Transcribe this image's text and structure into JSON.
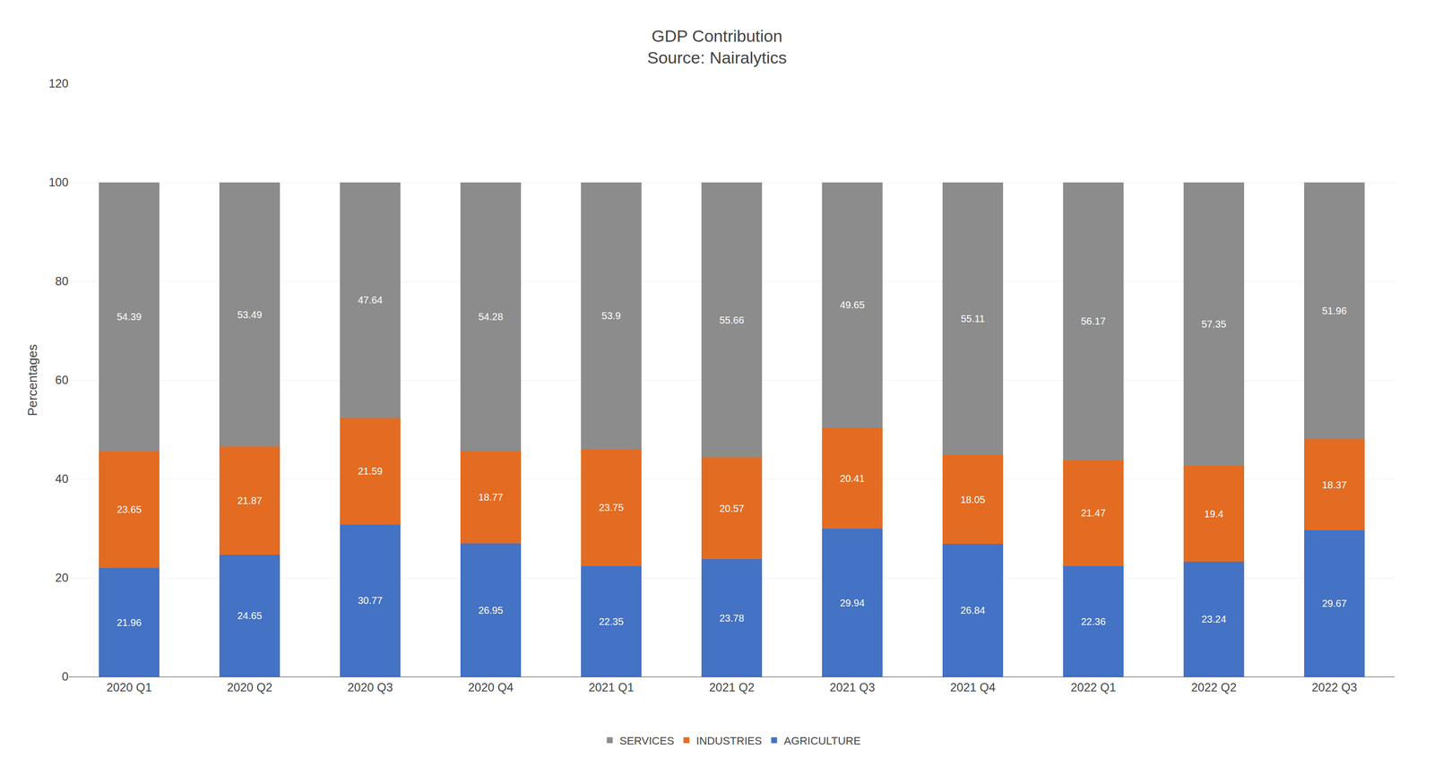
{
  "chart_data": {
    "type": "bar",
    "title": "GDP Contribution\nSource: Nairalytics",
    "ylabel": "Percentages",
    "categories": [
      "2020 Q1",
      "2020 Q2",
      "2020 Q3",
      "2020 Q4",
      "2021 Q1",
      "2021 Q2",
      "2021 Q3",
      "2021 Q4",
      "2022 Q1",
      "2022 Q2",
      "2022 Q3"
    ],
    "series": [
      {
        "name": "AGRICULTURE",
        "color": "#4472C4",
        "values": [
          21.96,
          24.65,
          30.77,
          26.95,
          22.35,
          23.78,
          29.94,
          26.84,
          22.36,
          23.24,
          29.67
        ]
      },
      {
        "name": "INDUSTRIES",
        "color": "#E36C22",
        "values": [
          23.65,
          21.87,
          21.59,
          18.77,
          23.75,
          20.57,
          20.41,
          18.05,
          21.47,
          19.4,
          18.37
        ]
      },
      {
        "name": "SERVICES",
        "color": "#8C8C8C",
        "values": [
          54.39,
          53.49,
          47.64,
          54.28,
          53.9,
          55.66,
          49.65,
          55.11,
          56.17,
          57.35,
          51.96
        ]
      }
    ],
    "ylim": [
      0,
      120
    ],
    "yticks": [
      0,
      20,
      40,
      60,
      80,
      100,
      120
    ],
    "stacked": true,
    "data_labels": true,
    "grid": true,
    "legend": "bottom"
  }
}
